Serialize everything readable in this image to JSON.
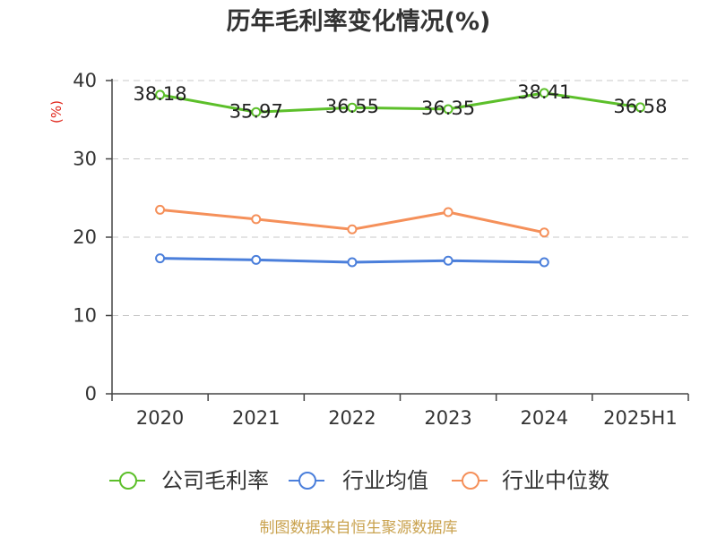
{
  "chart_data": {
    "type": "line",
    "title": "历年毛利率变化情况(%)",
    "xlabel": "",
    "ylabel": "(%)",
    "ylabel_color": "#e0261c",
    "categories": [
      "2020",
      "2021",
      "2022",
      "2023",
      "2024",
      "2025H1"
    ],
    "ylim": [
      0,
      40
    ],
    "yticks": [
      0,
      10,
      20,
      30,
      40
    ],
    "grid": true,
    "legend_position": "bottom",
    "series": [
      {
        "name": "公司毛利率",
        "color": "#5cbf2a",
        "show_labels": true,
        "values": [
          38.18,
          35.97,
          36.55,
          36.35,
          38.41,
          36.58
        ]
      },
      {
        "name": "行业均值",
        "color": "#4b7fdb",
        "show_labels": false,
        "values": [
          17.3,
          17.1,
          16.8,
          17.0,
          16.8,
          null
        ]
      },
      {
        "name": "行业中位数",
        "color": "#f5905a",
        "show_labels": false,
        "values": [
          23.5,
          22.3,
          21.0,
          23.2,
          20.6,
          null
        ]
      }
    ],
    "source": "制图数据来自恒生聚源数据库",
    "source_color": "#c9a24e"
  }
}
